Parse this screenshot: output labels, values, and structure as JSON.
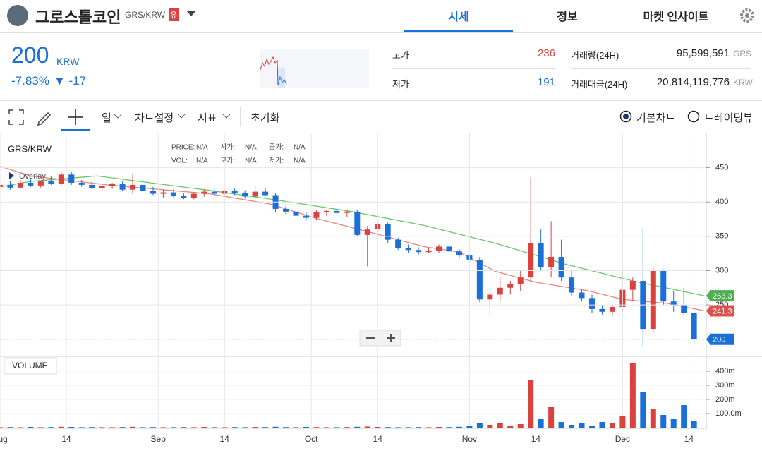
{
  "header": {
    "title": "그로스톨코인",
    "pair": "GRS/KRW",
    "badge": "유",
    "tabs": [
      "시세",
      "정보",
      "마켓 인사이트"
    ]
  },
  "ticker": {
    "price": "200",
    "unit": "KRW",
    "change_rate": "-7.83%",
    "change": "▼ -17"
  },
  "stats": [
    {
      "label": "고가",
      "value": "236"
    },
    {
      "label": "저가",
      "value": "191"
    },
    {
      "label": "거래량(24H)",
      "value": "95,599,591",
      "unit": "GRS"
    },
    {
      "label": "거래대금(24H)",
      "value": "20,814,119,776",
      "unit": "KRW"
    }
  ],
  "toolbar": {
    "items": [
      "일",
      "차트설정",
      "지표",
      "초기화"
    ],
    "modes": [
      "기본차트",
      "트레이딩뷰"
    ]
  },
  "chart_data": {
    "type": "candlestick",
    "title": "GRS/KRW",
    "overlay_label": "Overlay",
    "info": [
      {
        "label": "PRICE:",
        "value": "N/A"
      },
      {
        "label": "시가:",
        "value": "N/A"
      },
      {
        "label": "종가:",
        "value": "N/A"
      },
      {
        "label": "VOL:",
        "value": "N/A"
      },
      {
        "label": "고가:",
        "value": "N/A"
      },
      {
        "label": "저가:",
        "value": "N/A"
      }
    ],
    "up_color": "#d9423f",
    "down_color": "#1a6fd8",
    "x": [
      0,
      2,
      4,
      6,
      8,
      10,
      12,
      14,
      16,
      18,
      20,
      22,
      24,
      26,
      28,
      30,
      32,
      34,
      36,
      38,
      40,
      42,
      44,
      46,
      48,
      50,
      52,
      54,
      56,
      58,
      60,
      62,
      64,
      66,
      68,
      70,
      72,
      74,
      76,
      78,
      80,
      82,
      84,
      86,
      88,
      90,
      92,
      94,
      96,
      98,
      100,
      102,
      104,
      106,
      108,
      110,
      112,
      114,
      116,
      118,
      120,
      122,
      124,
      126,
      128,
      130,
      132,
      134,
      136
    ],
    "open": [
      422,
      425,
      421,
      428,
      424,
      430,
      427,
      440,
      428,
      425,
      420,
      423,
      426,
      418,
      425,
      416,
      412,
      414,
      409,
      406,
      412,
      415,
      412,
      416,
      413,
      408,
      415,
      410,
      390,
      386,
      380,
      377,
      385,
      387,
      384,
      386,
      352,
      360,
      368,
      345,
      333,
      330,
      327,
      329,
      335,
      328,
      322,
      316,
      258,
      265,
      275,
      280,
      290,
      340,
      305,
      320,
      290,
      268,
      260,
      244,
      240,
      247,
      272,
      285,
      215,
      300,
      255,
      250,
      238
    ],
    "high": [
      428,
      430,
      432,
      433,
      431,
      438,
      445,
      444,
      432,
      429,
      426,
      428,
      430,
      440,
      428,
      422,
      418,
      418,
      413,
      414,
      418,
      419,
      418,
      420,
      417,
      423,
      420,
      413,
      394,
      390,
      385,
      388,
      389,
      390,
      388,
      388,
      365,
      371,
      370,
      348,
      338,
      334,
      333,
      338,
      337,
      331,
      325,
      320,
      272,
      290,
      285,
      300,
      436,
      360,
      372,
      345,
      300,
      272,
      265,
      250,
      250,
      305,
      290,
      362,
      305,
      302,
      270,
      275,
      242
    ],
    "low": [
      416,
      418,
      419,
      422,
      420,
      425,
      424,
      425,
      422,
      418,
      416,
      419,
      416,
      412,
      414,
      410,
      406,
      407,
      404,
      404,
      408,
      410,
      408,
      410,
      405,
      405,
      408,
      385,
      382,
      378,
      374,
      374,
      380,
      380,
      378,
      350,
      306,
      350,
      340,
      330,
      326,
      323,
      325,
      326,
      325,
      318,
      313,
      254,
      235,
      256,
      265,
      270,
      282,
      300,
      290,
      285,
      262,
      255,
      238,
      236,
      235,
      240,
      255,
      190,
      210,
      250,
      240,
      235,
      192
    ],
    "close": [
      425,
      421,
      428,
      424,
      430,
      427,
      440,
      428,
      425,
      420,
      423,
      426,
      418,
      425,
      416,
      412,
      414,
      409,
      406,
      412,
      415,
      412,
      416,
      413,
      408,
      415,
      410,
      390,
      386,
      380,
      377,
      385,
      387,
      384,
      386,
      352,
      360,
      368,
      345,
      333,
      330,
      327,
      329,
      335,
      328,
      322,
      316,
      258,
      265,
      275,
      280,
      290,
      340,
      305,
      320,
      290,
      268,
      260,
      244,
      240,
      247,
      272,
      285,
      215,
      300,
      255,
      250,
      238,
      200
    ],
    "xlim": [
      0,
      138.4
    ],
    "xticks": [
      {
        "value": 0,
        "label": "Aug"
      },
      {
        "value": 13,
        "label": "14"
      },
      {
        "value": 31,
        "label": "Sep"
      },
      {
        "value": 44,
        "label": "14"
      },
      {
        "value": 61,
        "label": "Oct"
      },
      {
        "value": 74,
        "label": "14"
      },
      {
        "value": 92,
        "label": "Nov"
      },
      {
        "value": 105,
        "label": "14"
      },
      {
        "value": 122,
        "label": "Dec"
      },
      {
        "value": 135,
        "label": "14"
      }
    ],
    "ylim": [
      175,
      501
    ],
    "yticks": [
      250,
      300,
      350,
      400,
      450
    ],
    "ma": [
      {
        "color": "#6cc66c",
        "x": [
          0,
          6,
          19,
          41,
          55,
          69,
          83,
          97,
          111,
          124,
          138
        ],
        "values": [
          422,
          430,
          438,
          417,
          402,
          386,
          366,
          340,
          309,
          285,
          263.3
        ]
      },
      {
        "color": "#e8867f",
        "x": [
          0,
          6,
          21,
          41,
          53,
          62,
          73,
          83,
          90,
          97,
          105,
          115,
          122,
          131,
          138
        ],
        "values": [
          452,
          438,
          425,
          412,
          397,
          376,
          355,
          335,
          327,
          299,
          283,
          271,
          258,
          252,
          241.3
        ]
      }
    ],
    "price_tags": [
      {
        "value": 263.3,
        "color": "#4caf50"
      },
      {
        "value": 241.3,
        "color": "#d9534f"
      },
      {
        "value": 200,
        "color": "#1a6fd8"
      }
    ],
    "volume": {
      "title": "VOLUME",
      "values": [
        3,
        4,
        3,
        5,
        3,
        4,
        6,
        5,
        3,
        4,
        3,
        3,
        4,
        6,
        3,
        4,
        3,
        3,
        4,
        3,
        5,
        3,
        3,
        4,
        3,
        5,
        4,
        6,
        4,
        3,
        5,
        4,
        3,
        3,
        4,
        6,
        8,
        5,
        4,
        3,
        3,
        4,
        3,
        5,
        4,
        6,
        10,
        30,
        20,
        35,
        15,
        25,
        340,
        60,
        150,
        40,
        20,
        30,
        15,
        40,
        30,
        80,
        460,
        250,
        130,
        90,
        60,
        160,
        50
      ],
      "ylim": [
        0,
        495
      ],
      "yticks": [
        {
          "value": 100,
          "label": "100.0m"
        },
        {
          "value": 200,
          "label": "200m"
        },
        {
          "value": 300,
          "label": "300m"
        },
        {
          "value": 400,
          "label": "400m"
        }
      ]
    }
  }
}
